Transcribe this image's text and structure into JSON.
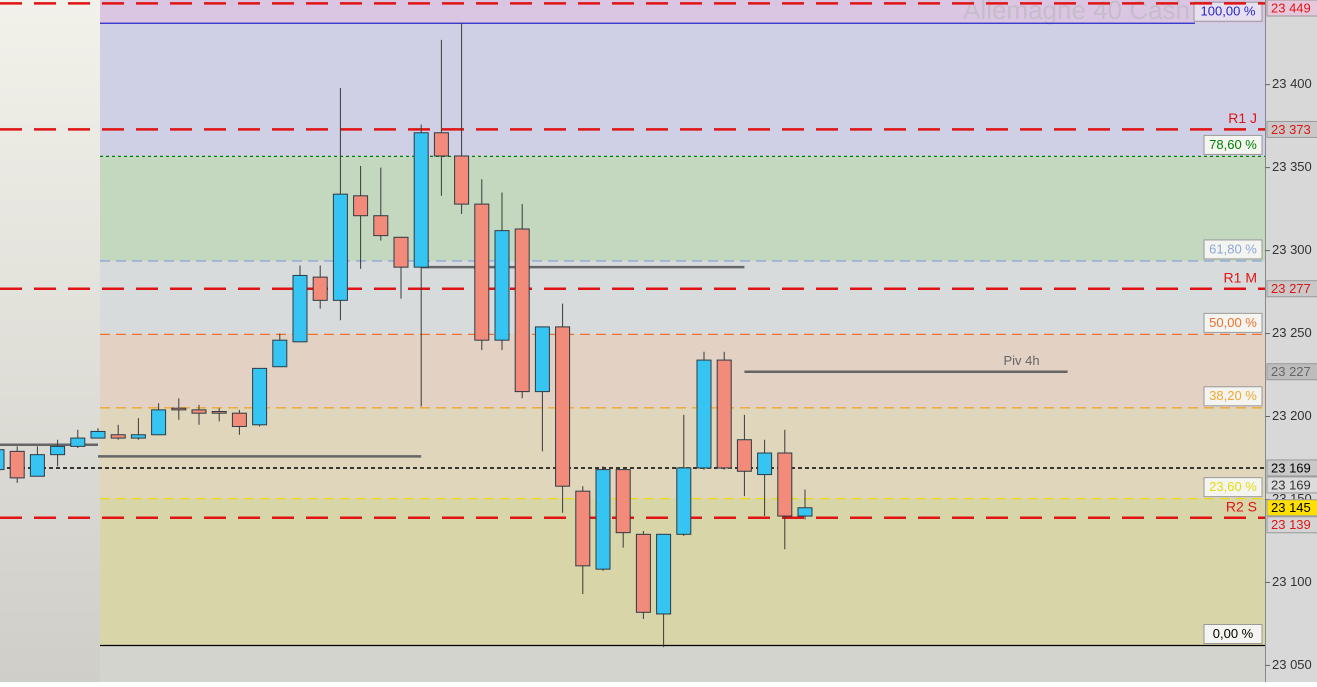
{
  "chart_data": {
    "type": "candlestick",
    "title": "Allemagne 40 Cash",
    "ylim": [
      23040,
      23451
    ],
    "yticks": [
      {
        "value": 23050,
        "label": "23 050"
      },
      {
        "value": 23100,
        "label": "23 100"
      },
      {
        "value": 23150,
        "label": "23 150"
      },
      {
        "value": 23200,
        "label": "23 200"
      },
      {
        "value": 23250,
        "label": "23 250"
      },
      {
        "value": 23300,
        "label": "23 300"
      },
      {
        "value": 23350,
        "label": "23 350"
      },
      {
        "value": 23400,
        "label": "23 400"
      }
    ],
    "up_color": "#36c5f2",
    "down_color": "#f28b7a",
    "open": [
      23168,
      23179,
      23164,
      23177,
      23182,
      23187,
      23189,
      23187,
      23189,
      23205,
      23204,
      23203,
      23202,
      23195,
      23230,
      23245,
      23284,
      23270,
      23333,
      23321,
      23308,
      23290,
      23371,
      23357,
      23328,
      23246,
      23313,
      23215,
      23254,
      23155,
      23108,
      23168,
      23129,
      23081,
      23129,
      23169,
      23234,
      23186,
      23165,
      23178,
      23140
    ],
    "high": [
      23182,
      23182,
      23182,
      23186,
      23192,
      23193,
      23195,
      23199,
      23208,
      23211,
      23207,
      23205,
      23204,
      23229,
      23250,
      23291,
      23291,
      23398,
      23351,
      23350,
      23308,
      23376,
      23427,
      23437,
      23343,
      23335,
      23328,
      23254,
      23268,
      23158,
      23170,
      23168,
      23131,
      23129,
      23201,
      23239,
      23239,
      23201,
      23186,
      23192,
      23156
    ],
    "low": [
      23166,
      23160,
      23164,
      23170,
      23181,
      23187,
      23186,
      23186,
      23189,
      23198,
      23195,
      23197,
      23189,
      23194,
      23230,
      23245,
      23265,
      23258,
      23289,
      23306,
      23271,
      23206,
      23333,
      23322,
      23240,
      23240,
      23211,
      23179,
      23142,
      23093,
      23107,
      23121,
      23078,
      23061,
      23128,
      23168,
      23168,
      23152,
      23140,
      23120,
      23138
    ],
    "close": [
      23180,
      23163,
      23177,
      23182,
      23187,
      23191,
      23187,
      23189,
      23204,
      23204,
      23202,
      23202,
      23194,
      23229,
      23246,
      23285,
      23270,
      23334,
      23321,
      23309,
      23290,
      23371,
      23357,
      23328,
      23246,
      23312,
      23215,
      23254,
      23158,
      23110,
      23168,
      23130,
      23082,
      23129,
      23169,
      23234,
      23169,
      23167,
      23178,
      23140,
      23145
    ],
    "fibonacci": {
      "high": 23437,
      "low": 23062,
      "levels": [
        {
          "ratio": 100,
          "label": "100,00 %",
          "color": "#2626c8",
          "zone": "#cfd0e6"
        },
        {
          "ratio": 78.6,
          "label": "78,60 %",
          "color": "#008000",
          "zone": "#c3d8bf"
        },
        {
          "ratio": 61.8,
          "label": "61,80 %",
          "color": "#8ea6d8",
          "zone": "#d8dbdc"
        },
        {
          "ratio": 50,
          "label": "50,00 %",
          "color": "#f07030",
          "zone": "#e3d1c3"
        },
        {
          "ratio": 38.2,
          "label": "38,20 %",
          "color": "#f0a830",
          "zone": "#e0d6bc"
        },
        {
          "ratio": 23.6,
          "label": "23,60 %",
          "color": "#e6dc10",
          "zone": "#d8d5a8"
        },
        {
          "ratio": 0,
          "label": "0,00 %",
          "color": "#000000",
          "zone": "#d4d4cf"
        }
      ]
    },
    "levels": [
      {
        "value": 23449,
        "label": "23 449",
        "color": "#e01414",
        "style": "dash",
        "tag_bg": "#e6c8dc"
      },
      {
        "name": "R1 J",
        "value": 23373,
        "label": "23 373",
        "color": "#e01414",
        "style": "dash",
        "tag_bg": "#c9c9c9"
      },
      {
        "name": "R1 M",
        "value": 23277,
        "label": "23 277",
        "color": "#e01414",
        "style": "dash",
        "tag_bg": "#c9c9c9"
      },
      {
        "value": 23169,
        "label": "23 169",
        "color": "#000000",
        "style": "dot",
        "tag_bg": "#c9c9c9"
      },
      {
        "name": "R2 S",
        "value": 23139,
        "label": "23 139",
        "color": "#e01414",
        "style": "dash",
        "tag_bg": "#d4d4d4"
      }
    ],
    "tags": [
      {
        "value": 23227,
        "label": "23 227",
        "color": "#666666",
        "bg": "#bdbdbd"
      },
      {
        "value": 23169,
        "label": "23 169",
        "color": "#333333",
        "bg": "#dcdcdc"
      },
      {
        "value": 23145,
        "label": "23 145",
        "color": "#000000",
        "bg": "#ffe000"
      }
    ],
    "pivot_4h": {
      "name": "Piv 4h",
      "color": "#666666",
      "segments": [
        {
          "from": 0,
          "to": 5,
          "value": 23183
        },
        {
          "from": 5,
          "to": 21,
          "value": 23176
        },
        {
          "from": 21,
          "to": 37,
          "value": 23290
        },
        {
          "from": 37,
          "to": 53,
          "value": 23227
        }
      ]
    }
  }
}
